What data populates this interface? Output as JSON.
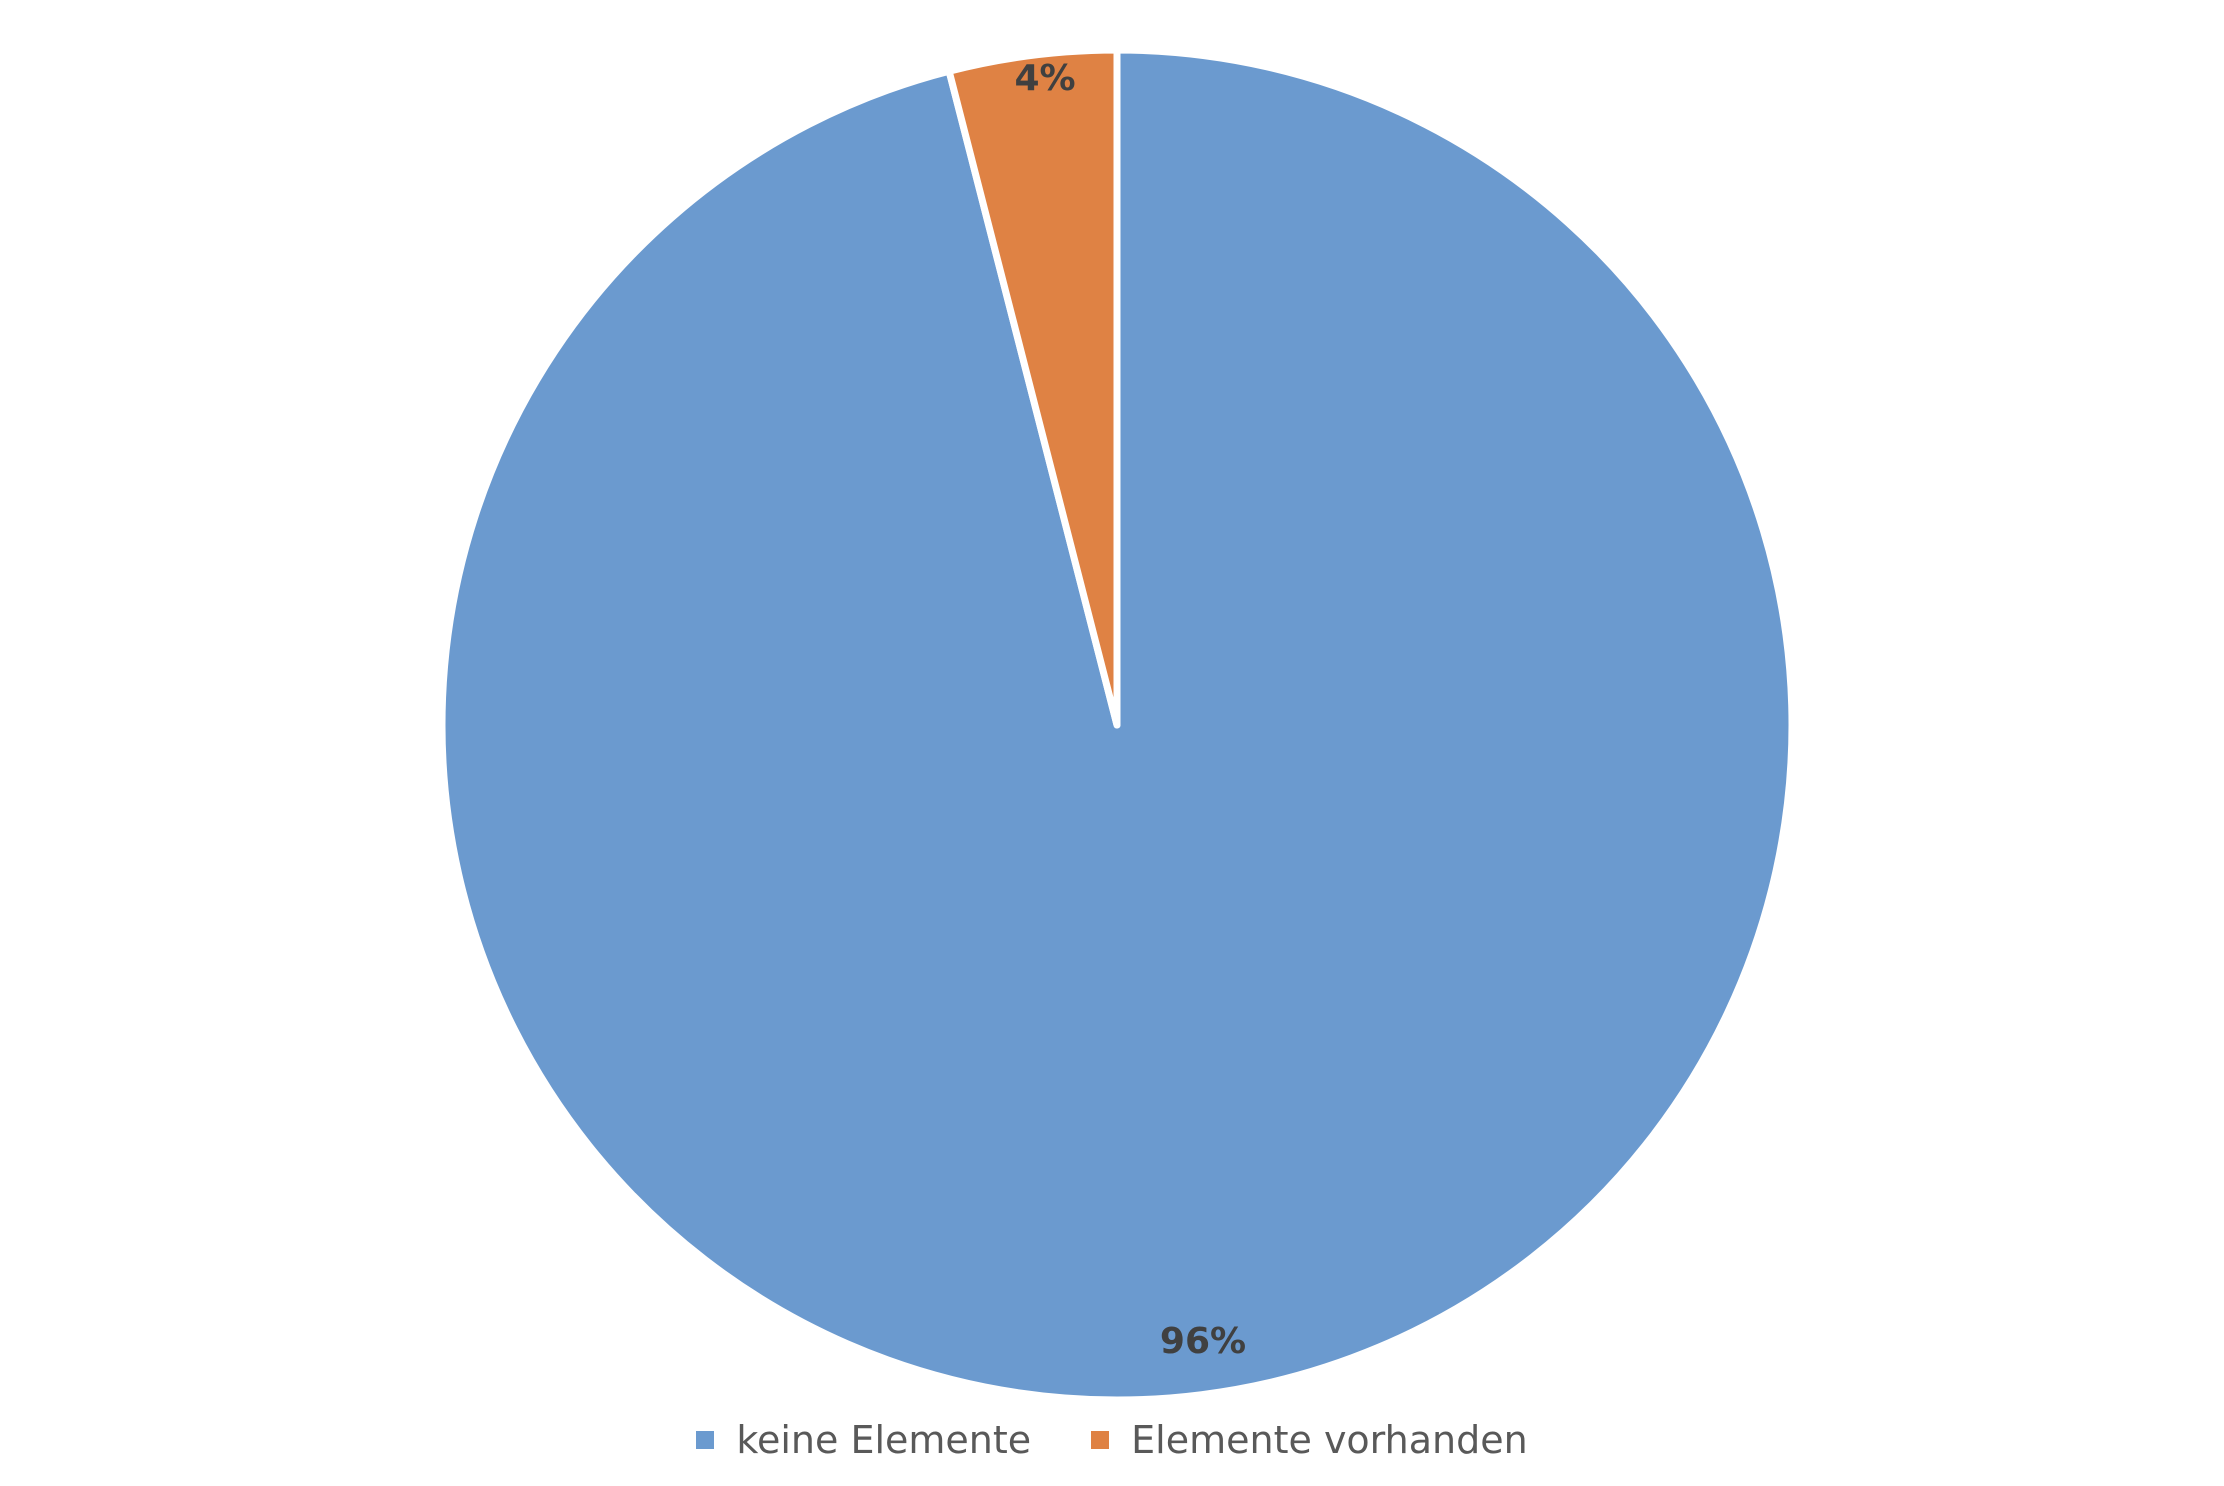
{
  "chart_data": {
    "type": "pie",
    "start_angle_deg": 0,
    "direction": "clockwise",
    "slices": [
      {
        "name": "keine Elemente",
        "value": 96,
        "label": "96%",
        "color": "#6B9ACF"
      },
      {
        "name": "Elemente vorhanden",
        "value": 4,
        "label": "4%",
        "color": "#DF8244"
      }
    ],
    "legend_position": "bottom"
  }
}
